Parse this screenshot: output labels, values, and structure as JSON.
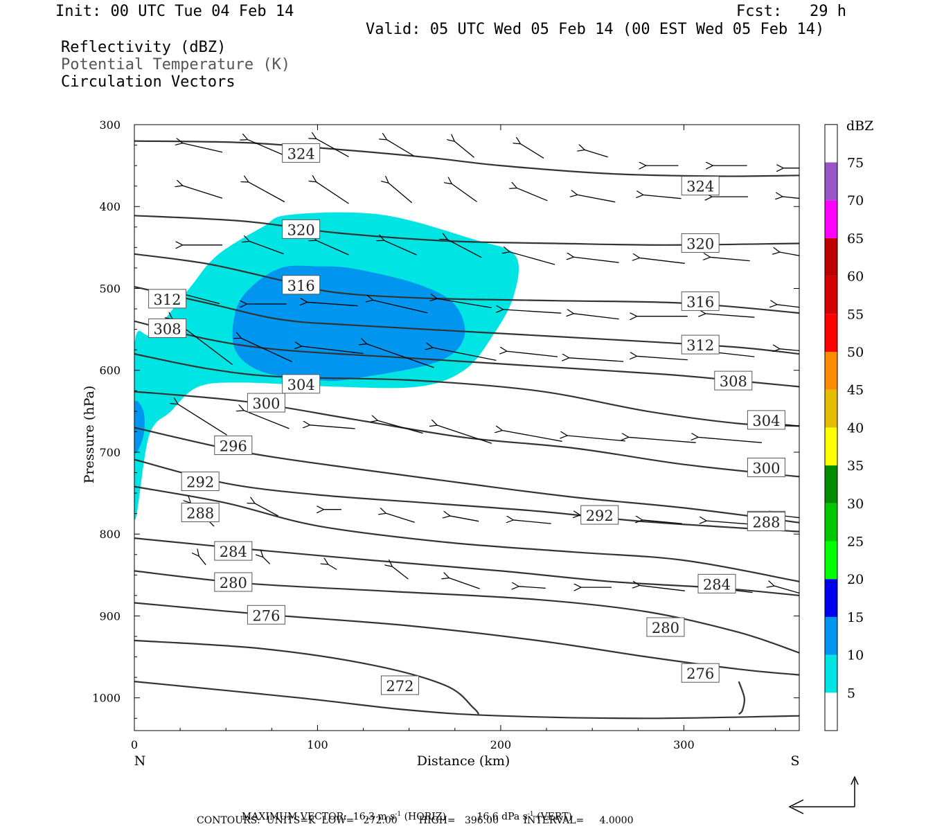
{
  "header": {
    "init": "Init: 00 UTC Tue 04 Feb 14",
    "fcst": "Fcst:   29 h",
    "valid": "Valid: 05 UTC Wed 05 Feb 14 (00 EST Wed 05 Feb 14)",
    "field1": "Reflectivity (dBZ)",
    "field2": "Potential Temperature (K)",
    "field3": "Circulation Vectors"
  },
  "footer": {
    "max_vector_label": "MAXIMUM VECTOR:",
    "horiz": "16.3 m s",
    "horiz_exp": "-1",
    "horiz_tag": "(HORIZ)",
    "vert": "16.6 dPa s",
    "vert_exp": "-1",
    "vert_tag": "(VERT)",
    "contours": "CONTOURS:  UNITS=K  LOW=   272.00       HIGH=   396.00        INTERVAL=     4.0000"
  },
  "chart_data": {
    "type": "cross-section",
    "xlabel": "Distance (km)",
    "ylabel": "Pressure (hPa)",
    "x_left_label": "N",
    "x_right_label": "S",
    "xlim": [
      0,
      363
    ],
    "ylim": [
      300,
      1040
    ],
    "xticks": [
      0,
      100,
      200,
      300
    ],
    "yticks": [
      300,
      400,
      500,
      600,
      700,
      800,
      900,
      1000
    ],
    "colorbar": {
      "title": "dBZ",
      "levels": [
        5,
        10,
        15,
        20,
        25,
        30,
        35,
        40,
        45,
        50,
        55,
        60,
        65,
        70,
        75
      ],
      "colors": [
        "#ffffff",
        "#00e4e4",
        "#0096f0",
        "#0000f0",
        "#00ff00",
        "#00c800",
        "#008c00",
        "#ffff00",
        "#e6bc00",
        "#ff8c00",
        "#ff0000",
        "#d40000",
        "#bc0000",
        "#ff00ff",
        "#9855c8",
        "#ffffff"
      ]
    },
    "reflectivity_5dbz": [
      [
        0,
        570
      ],
      [
        0,
        780
      ],
      [
        8,
        680
      ],
      [
        20,
        650
      ],
      [
        35,
        620
      ],
      [
        60,
        615
      ],
      [
        110,
        620
      ],
      [
        155,
        620
      ],
      [
        180,
        600
      ],
      [
        195,
        560
      ],
      [
        207,
        510
      ],
      [
        208,
        460
      ],
      [
        185,
        440
      ],
      [
        135,
        410
      ],
      [
        85,
        410
      ],
      [
        70,
        425
      ],
      [
        45,
        460
      ],
      [
        30,
        500
      ],
      [
        10,
        555
      ]
    ],
    "reflectivity_10dbz": [
      [
        55,
        530
      ],
      [
        55,
        575
      ],
      [
        70,
        602
      ],
      [
        100,
        612
      ],
      [
        120,
        610
      ],
      [
        165,
        590
      ],
      [
        180,
        560
      ],
      [
        175,
        520
      ],
      [
        155,
        495
      ],
      [
        120,
        476
      ],
      [
        100,
        473
      ],
      [
        80,
        475
      ],
      [
        63,
        500
      ]
    ],
    "reflectivity_10dbz_edge": [
      [
        0,
        640
      ],
      [
        0,
        700
      ],
      [
        5,
        680
      ],
      [
        5,
        650
      ]
    ],
    "theta_contours": [
      {
        "value": 324,
        "points": [
          [
            0,
            320
          ],
          [
            60,
            322
          ],
          [
            110,
            330
          ],
          [
            160,
            340
          ],
          [
            200,
            350
          ],
          [
            260,
            360
          ],
          [
            320,
            363
          ],
          [
            363,
            362
          ]
        ],
        "labels": [
          [
            91,
            335
          ],
          [
            309,
            375
          ]
        ]
      },
      {
        "value": 320,
        "points": [
          [
            0,
            411
          ],
          [
            60,
            418
          ],
          [
            110,
            432
          ],
          [
            170,
            442
          ],
          [
            230,
            445
          ],
          [
            290,
            447
          ],
          [
            363,
            445
          ]
        ],
        "labels": [
          [
            91,
            428
          ],
          [
            309,
            445
          ]
        ]
      },
      {
        "value": 316,
        "points": [
          [
            0,
            458
          ],
          [
            40,
            470
          ],
          [
            80,
            490
          ],
          [
            110,
            505
          ],
          [
            160,
            512
          ],
          [
            230,
            515
          ],
          [
            300,
            518
          ],
          [
            363,
            530
          ]
        ],
        "labels": [
          [
            91,
            496
          ],
          [
            309,
            516
          ]
        ]
      },
      {
        "value": 312,
        "points": [
          [
            0,
            498
          ],
          [
            40,
            518
          ],
          [
            80,
            538
          ],
          [
            120,
            545
          ],
          [
            200,
            555
          ],
          [
            280,
            565
          ],
          [
            330,
            572
          ],
          [
            363,
            580
          ]
        ],
        "labels": [
          [
            18,
            513
          ],
          [
            309,
            569
          ]
        ]
      },
      {
        "value": 308,
        "points": [
          [
            0,
            540
          ],
          [
            40,
            562
          ],
          [
            80,
            575
          ],
          [
            150,
            585
          ],
          [
            220,
            595
          ],
          [
            290,
            605
          ],
          [
            330,
            613
          ],
          [
            363,
            620
          ]
        ],
        "labels": [
          [
            18,
            549
          ],
          [
            327,
            613
          ]
        ]
      },
      {
        "value": 304,
        "points": [
          [
            0,
            580
          ],
          [
            40,
            598
          ],
          [
            80,
            608
          ],
          [
            150,
            612
          ],
          [
            220,
            625
          ],
          [
            280,
            650
          ],
          [
            330,
            665
          ],
          [
            363,
            668
          ]
        ],
        "labels": [
          [
            91,
            617
          ],
          [
            345,
            661
          ]
        ]
      },
      {
        "value": 300,
        "points": [
          [
            0,
            626
          ],
          [
            60,
            638
          ],
          [
            120,
            660
          ],
          [
            180,
            682
          ],
          [
            240,
            695
          ],
          [
            300,
            715
          ],
          [
            363,
            730
          ]
        ],
        "labels": [
          [
            72,
            640
          ],
          [
            345,
            719
          ]
        ]
      },
      {
        "value": 296,
        "points": [
          [
            0,
            670
          ],
          [
            60,
            700
          ],
          [
            120,
            720
          ],
          [
            180,
            738
          ],
          [
            240,
            755
          ],
          [
            300,
            768
          ],
          [
            363,
            786
          ]
        ],
        "labels": [
          [
            54,
            692
          ],
          [
            345,
            784
          ]
        ]
      },
      {
        "value": 292,
        "points": [
          [
            0,
            709
          ],
          [
            50,
            738
          ],
          [
            100,
            752
          ],
          [
            160,
            762
          ],
          [
            220,
            772
          ],
          [
            280,
            785
          ],
          [
            363,
            797
          ]
        ],
        "labels": [
          [
            36,
            736
          ],
          [
            254,
            777
          ]
        ]
      },
      {
        "value": 288,
        "points": [
          [
            0,
            742
          ],
          [
            50,
            762
          ],
          [
            100,
            790
          ],
          [
            170,
            810
          ],
          [
            240,
            822
          ],
          [
            300,
            832
          ],
          [
            363,
            858
          ]
        ],
        "labels": [
          [
            36,
            774
          ],
          [
            345,
            785
          ]
        ]
      },
      {
        "value": 284,
        "points": [
          [
            0,
            805
          ],
          [
            60,
            818
          ],
          [
            130,
            832
          ],
          [
            200,
            845
          ],
          [
            260,
            858
          ],
          [
            320,
            866
          ],
          [
            363,
            875
          ]
        ],
        "labels": [
          [
            54,
            821
          ],
          [
            318,
            861
          ]
        ]
      },
      {
        "value": 280,
        "points": [
          [
            0,
            845
          ],
          [
            60,
            860
          ],
          [
            140,
            870
          ],
          [
            220,
            880
          ],
          [
            280,
            895
          ],
          [
            330,
            920
          ],
          [
            363,
            945
          ]
        ],
        "labels": [
          [
            54,
            859
          ],
          [
            290,
            914
          ]
        ]
      },
      {
        "value": 276,
        "points": [
          [
            0,
            884
          ],
          [
            70,
            898
          ],
          [
            150,
            912
          ],
          [
            220,
            930
          ],
          [
            280,
            950
          ],
          [
            330,
            965
          ],
          [
            363,
            972
          ]
        ],
        "labels": [
          [
            72,
            899
          ],
          [
            309,
            970
          ]
        ]
      },
      {
        "value": 272,
        "points": [
          [
            0,
            930
          ],
          [
            70,
            940
          ],
          [
            130,
            960
          ],
          [
            170,
            985
          ],
          [
            185,
            1012
          ],
          [
            188,
            1020
          ]
        ],
        "labels": [
          [
            145,
            985
          ]
        ]
      },
      {
        "value": 276,
        "points": [
          [
            330,
            980
          ],
          [
            333,
            1000
          ],
          [
            332,
            1015
          ],
          [
            330,
            1020
          ]
        ],
        "labels": []
      },
      {
        "value": 0,
        "points": [
          [
            0,
            980
          ],
          [
            90,
            1000
          ],
          [
            150,
            1015
          ],
          [
            200,
            1022
          ],
          [
            280,
            1025
          ],
          [
            363,
            1022
          ]
        ],
        "labels": []
      }
    ],
    "vectors": [
      [
        37,
        328,
        -22,
        -5
      ],
      [
        72,
        328,
        -21,
        -9
      ],
      [
        108,
        328,
        -18,
        -10
      ],
      [
        145,
        328,
        -15,
        -9
      ],
      [
        180,
        330,
        -11,
        -9
      ],
      [
        217,
        332,
        -13,
        -8
      ],
      [
        252,
        335,
        -13,
        -4
      ],
      [
        288,
        350,
        -18,
        0
      ],
      [
        325,
        350,
        -19,
        0
      ],
      [
        363,
        353,
        -18,
        0
      ],
      [
        37,
        382,
        -22,
        -7
      ],
      [
        72,
        382,
        -20,
        -11
      ],
      [
        108,
        383,
        -18,
        -12
      ],
      [
        145,
        383,
        -13,
        -11
      ],
      [
        180,
        383,
        -14,
        -10
      ],
      [
        217,
        385,
        -17,
        -7
      ],
      [
        252,
        390,
        -21,
        -4
      ],
      [
        288,
        388,
        -21,
        -2
      ],
      [
        325,
        388,
        -20,
        0
      ],
      [
        363,
        390,
        -19,
        -2
      ],
      [
        37,
        447,
        -22,
        0
      ],
      [
        72,
        450,
        -19,
        -7
      ],
      [
        108,
        450,
        -18,
        -8
      ],
      [
        145,
        450,
        -18,
        -8
      ],
      [
        180,
        451,
        -19,
        -10
      ],
      [
        217,
        463,
        -25,
        -7
      ],
      [
        252,
        465,
        -25,
        -3
      ],
      [
        288,
        466,
        -25,
        -3
      ],
      [
        325,
        464,
        -22,
        -2
      ],
      [
        363,
        460,
        -22,
        -4
      ],
      [
        37,
        513,
        -19,
        -5
      ],
      [
        72,
        519,
        -22,
        0
      ],
      [
        108,
        519,
        -28,
        -2
      ],
      [
        145,
        522,
        -30,
        -7
      ],
      [
        180,
        518,
        -30,
        -5
      ],
      [
        217,
        528,
        -32,
        -2
      ],
      [
        252,
        534,
        -25,
        -3
      ],
      [
        288,
        534,
        -28,
        0
      ],
      [
        325,
        533,
        -27,
        -2
      ],
      [
        363,
        523,
        -25,
        -3
      ],
      [
        37,
        565,
        -33,
        -25
      ],
      [
        72,
        575,
        -28,
        -13
      ],
      [
        108,
        575,
        -34,
        -4
      ],
      [
        145,
        582,
        -37,
        -13
      ],
      [
        180,
        580,
        -35,
        -7
      ],
      [
        217,
        580,
        -28,
        -3
      ],
      [
        252,
        587,
        -30,
        -2
      ],
      [
        288,
        585,
        -28,
        -2
      ],
      [
        325,
        580,
        -27,
        -3
      ],
      [
        363,
        576,
        -22,
        -2
      ],
      [
        37,
        660,
        -27,
        -17
      ],
      [
        72,
        660,
        -25,
        -10
      ],
      [
        108,
        669,
        -25,
        -2
      ],
      [
        145,
        669,
        -25,
        -7
      ],
      [
        180,
        678,
        -30,
        -10
      ],
      [
        217,
        680,
        -33,
        -6
      ],
      [
        252,
        683,
        -32,
        -3
      ],
      [
        288,
        685,
        -37,
        -3
      ],
      [
        325,
        685,
        -35,
        -3
      ],
      [
        363,
        668,
        -30,
        -3
      ],
      [
        37,
        776,
        -13,
        -13
      ],
      [
        72,
        770,
        -13,
        -7
      ],
      [
        108,
        770,
        -10,
        0
      ],
      [
        145,
        780,
        -16,
        -5
      ],
      [
        180,
        781,
        -16,
        -3
      ],
      [
        217,
        785,
        -21,
        -2
      ],
      [
        252,
        779,
        -18,
        -2
      ],
      [
        288,
        785,
        -22,
        -2
      ],
      [
        325,
        786,
        -26,
        -2
      ],
      [
        363,
        780,
        -26,
        -3
      ],
      [
        37,
        832,
        -4,
        -5
      ],
      [
        72,
        832,
        -4,
        -4
      ],
      [
        108,
        840,
        -5,
        -3
      ],
      [
        145,
        847,
        -9,
        -7
      ],
      [
        180,
        860,
        -17,
        -6
      ],
      [
        217,
        865,
        -15,
        -1
      ],
      [
        252,
        865,
        -17,
        0
      ],
      [
        288,
        866,
        -25,
        -3
      ],
      [
        325,
        868,
        -25,
        -3
      ],
      [
        363,
        872,
        -28,
        -8
      ]
    ]
  }
}
